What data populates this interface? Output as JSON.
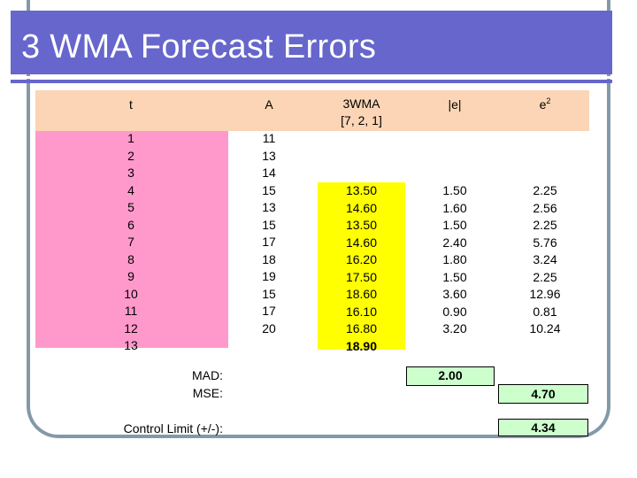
{
  "title": "3 WMA Forecast Errors",
  "headers": {
    "t": "t",
    "a": "A",
    "wma": "3WMA",
    "wma_weights": "[7, 2, 1]",
    "abs_e": "|e|",
    "e2_base": "e",
    "e2_sup": "2"
  },
  "t_values": [
    "1",
    "2",
    "3",
    "4",
    "5",
    "6",
    "7",
    "8",
    "9",
    "10",
    "11",
    "12",
    "13"
  ],
  "a_values": [
    "11",
    "13",
    "14",
    "15",
    "13",
    "15",
    "17",
    "18",
    "19",
    "15",
    "17",
    "20"
  ],
  "wma_values": [
    "13.50",
    "14.60",
    "13.50",
    "14.60",
    "16.20",
    "17.50",
    "18.60",
    "16.10",
    "16.80",
    "18.90"
  ],
  "abs_e_values": [
    "1.50",
    "1.60",
    "1.50",
    "2.40",
    "1.80",
    "1.50",
    "3.60",
    "0.90",
    "3.20"
  ],
  "e2_values": [
    "2.25",
    "2.56",
    "2.25",
    "5.76",
    "3.24",
    "2.25",
    "12.96",
    "0.81",
    "10.24"
  ],
  "summary": {
    "mad_label": "MAD:",
    "mse_label": "MSE:",
    "control_label": "Control Limit (+/-):",
    "mad_value": "2.00",
    "mse_value": "4.70",
    "control_value": "4.34"
  },
  "colors": {
    "title_bg": "#6666cc",
    "header_bg": "#fbd5b5",
    "t_bg": "#ff99cc",
    "wma_bg": "#ffff00",
    "result_bg": "#ccffcc",
    "frame": "#8499a8"
  }
}
